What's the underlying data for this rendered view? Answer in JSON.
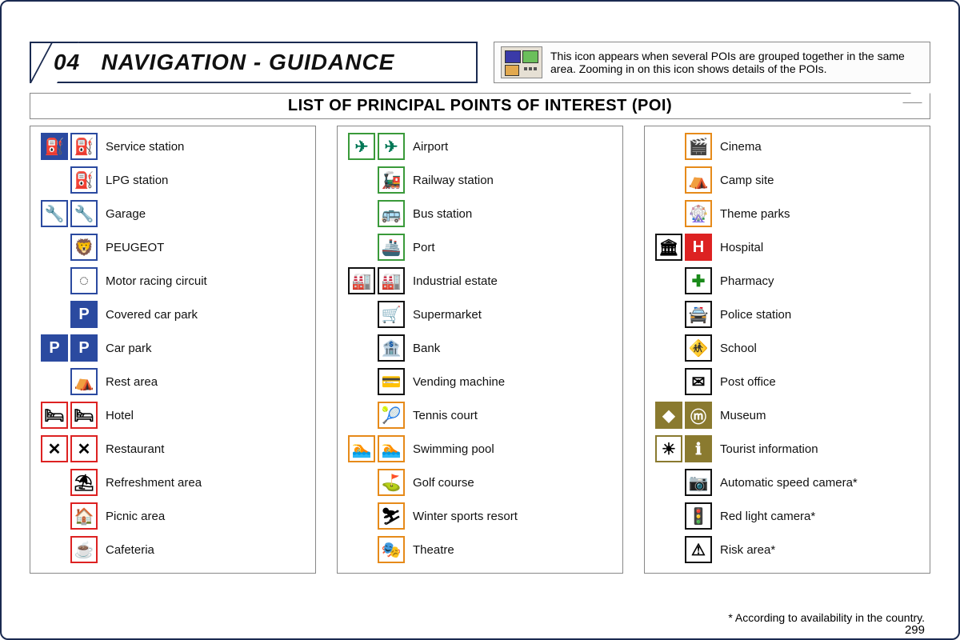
{
  "header": {
    "chapter_no": "04",
    "chapter_title": "NAVIGATION - GUIDANCE",
    "info_text": "This icon appears when several POIs are grouped together in the same area. Zooming in on this icon shows details of the POIs."
  },
  "subtitle": "LIST OF PRINCIPAL POINTS OF INTEREST (POI)",
  "columns": [
    [
      {
        "label": "Service station",
        "icons": [
          {
            "glyph": "⛽",
            "border": "blue",
            "fill": "blue"
          },
          {
            "glyph": "⛽",
            "border": "blue"
          }
        ]
      },
      {
        "label": "LPG station",
        "icons": [
          {
            "glyph": "⛽",
            "border": "blue"
          }
        ]
      },
      {
        "label": "Garage",
        "icons": [
          {
            "glyph": "🔧",
            "border": "blue"
          },
          {
            "glyph": "🔧",
            "border": "blue"
          }
        ]
      },
      {
        "label": "PEUGEOT",
        "icons": [
          {
            "glyph": "🦁",
            "border": "blue"
          }
        ]
      },
      {
        "label": "Motor racing circuit",
        "icons": [
          {
            "glyph": "◌",
            "border": "blue"
          }
        ]
      },
      {
        "label": "Covered car park",
        "icons": [
          {
            "glyph": "P",
            "border": "blue",
            "fill": "blue"
          }
        ]
      },
      {
        "label": "Car park",
        "icons": [
          {
            "glyph": "P",
            "border": "blue",
            "fill": "blue"
          },
          {
            "glyph": "P",
            "border": "blue",
            "fill": "blue"
          }
        ]
      },
      {
        "label": "Rest area",
        "icons": [
          {
            "glyph": "⛺",
            "border": "blue"
          }
        ]
      },
      {
        "label": "Hotel",
        "icons": [
          {
            "glyph": "🛏",
            "border": "red"
          },
          {
            "glyph": "🛏",
            "border": "red"
          }
        ]
      },
      {
        "label": "Restaurant",
        "icons": [
          {
            "glyph": "✕",
            "border": "red"
          },
          {
            "glyph": "✕",
            "border": "red"
          }
        ]
      },
      {
        "label": "Refreshment area",
        "icons": [
          {
            "glyph": "⛱",
            "border": "red"
          }
        ]
      },
      {
        "label": "Picnic area",
        "icons": [
          {
            "glyph": "🏠",
            "border": "red"
          }
        ]
      },
      {
        "label": "Cafeteria",
        "icons": [
          {
            "glyph": "☕",
            "border": "red"
          }
        ]
      }
    ],
    [
      {
        "label": "Airport",
        "icons": [
          {
            "glyph": "✈",
            "border": "green"
          },
          {
            "glyph": "✈",
            "border": "green"
          }
        ]
      },
      {
        "label": "Railway station",
        "icons": [
          {
            "glyph": "🚂",
            "border": "green"
          }
        ]
      },
      {
        "label": "Bus station",
        "icons": [
          {
            "glyph": "🚌",
            "border": "green"
          }
        ]
      },
      {
        "label": "Port",
        "icons": [
          {
            "glyph": "🚢",
            "border": "green"
          }
        ]
      },
      {
        "label": "Industrial estate",
        "icons": [
          {
            "glyph": "🏭",
            "border": "black"
          },
          {
            "glyph": "🏭",
            "border": "black"
          }
        ]
      },
      {
        "label": "Supermarket",
        "icons": [
          {
            "glyph": "🛒",
            "border": "black"
          }
        ]
      },
      {
        "label": "Bank",
        "icons": [
          {
            "glyph": "🏦",
            "border": "black"
          }
        ]
      },
      {
        "label": "Vending machine",
        "icons": [
          {
            "glyph": "💳",
            "border": "black"
          }
        ]
      },
      {
        "label": "Tennis court",
        "icons": [
          {
            "glyph": "🎾",
            "border": "orange"
          }
        ]
      },
      {
        "label": "Swimming pool",
        "icons": [
          {
            "glyph": "🏊",
            "border": "orange"
          },
          {
            "glyph": "🏊",
            "border": "orange"
          }
        ]
      },
      {
        "label": "Golf course",
        "icons": [
          {
            "glyph": "⛳",
            "border": "orange"
          }
        ]
      },
      {
        "label": "Winter sports resort",
        "icons": [
          {
            "glyph": "⛷",
            "border": "orange"
          }
        ]
      },
      {
        "label": "Theatre",
        "icons": [
          {
            "glyph": "🎭",
            "border": "orange"
          }
        ]
      }
    ],
    [
      {
        "label": "Cinema",
        "icons": [
          {
            "glyph": "🎬",
            "border": "orange"
          }
        ]
      },
      {
        "label": "Camp site",
        "icons": [
          {
            "glyph": "⛺",
            "border": "orange"
          }
        ]
      },
      {
        "label": "Theme parks",
        "icons": [
          {
            "glyph": "🎡",
            "border": "orange"
          }
        ]
      },
      {
        "label": "Hospital",
        "icons": [
          {
            "glyph": "🏛",
            "border": "black"
          },
          {
            "glyph": "H",
            "border": "red",
            "fill": "red"
          }
        ]
      },
      {
        "label": "Pharmacy",
        "icons": [
          {
            "glyph": "✚",
            "border": "black",
            "text_color": "#1a8a1a"
          }
        ]
      },
      {
        "label": "Police station",
        "icons": [
          {
            "glyph": "🚔",
            "border": "black"
          }
        ]
      },
      {
        "label": "School",
        "icons": [
          {
            "glyph": "🚸",
            "border": "black"
          }
        ]
      },
      {
        "label": "Post office",
        "icons": [
          {
            "glyph": "✉",
            "border": "black"
          }
        ]
      },
      {
        "label": "Museum",
        "icons": [
          {
            "glyph": "◆",
            "border": "olive",
            "fill": "olive"
          },
          {
            "glyph": "ⓜ",
            "border": "olive",
            "fill": "olive"
          }
        ]
      },
      {
        "label": "Tourist information",
        "icons": [
          {
            "glyph": "☀",
            "border": "olive"
          },
          {
            "glyph": "ℹ",
            "border": "olive",
            "fill": "olive"
          }
        ]
      },
      {
        "label": "Automatic speed camera*",
        "icons": [
          {
            "glyph": "📷",
            "border": "black"
          }
        ]
      },
      {
        "label": "Red light camera*",
        "icons": [
          {
            "glyph": "🚦",
            "border": "black"
          }
        ]
      },
      {
        "label": "Risk area*",
        "icons": [
          {
            "glyph": "⚠",
            "border": "black"
          }
        ]
      }
    ]
  ],
  "footnote": "* According to availability in the country.",
  "page_number": "299"
}
